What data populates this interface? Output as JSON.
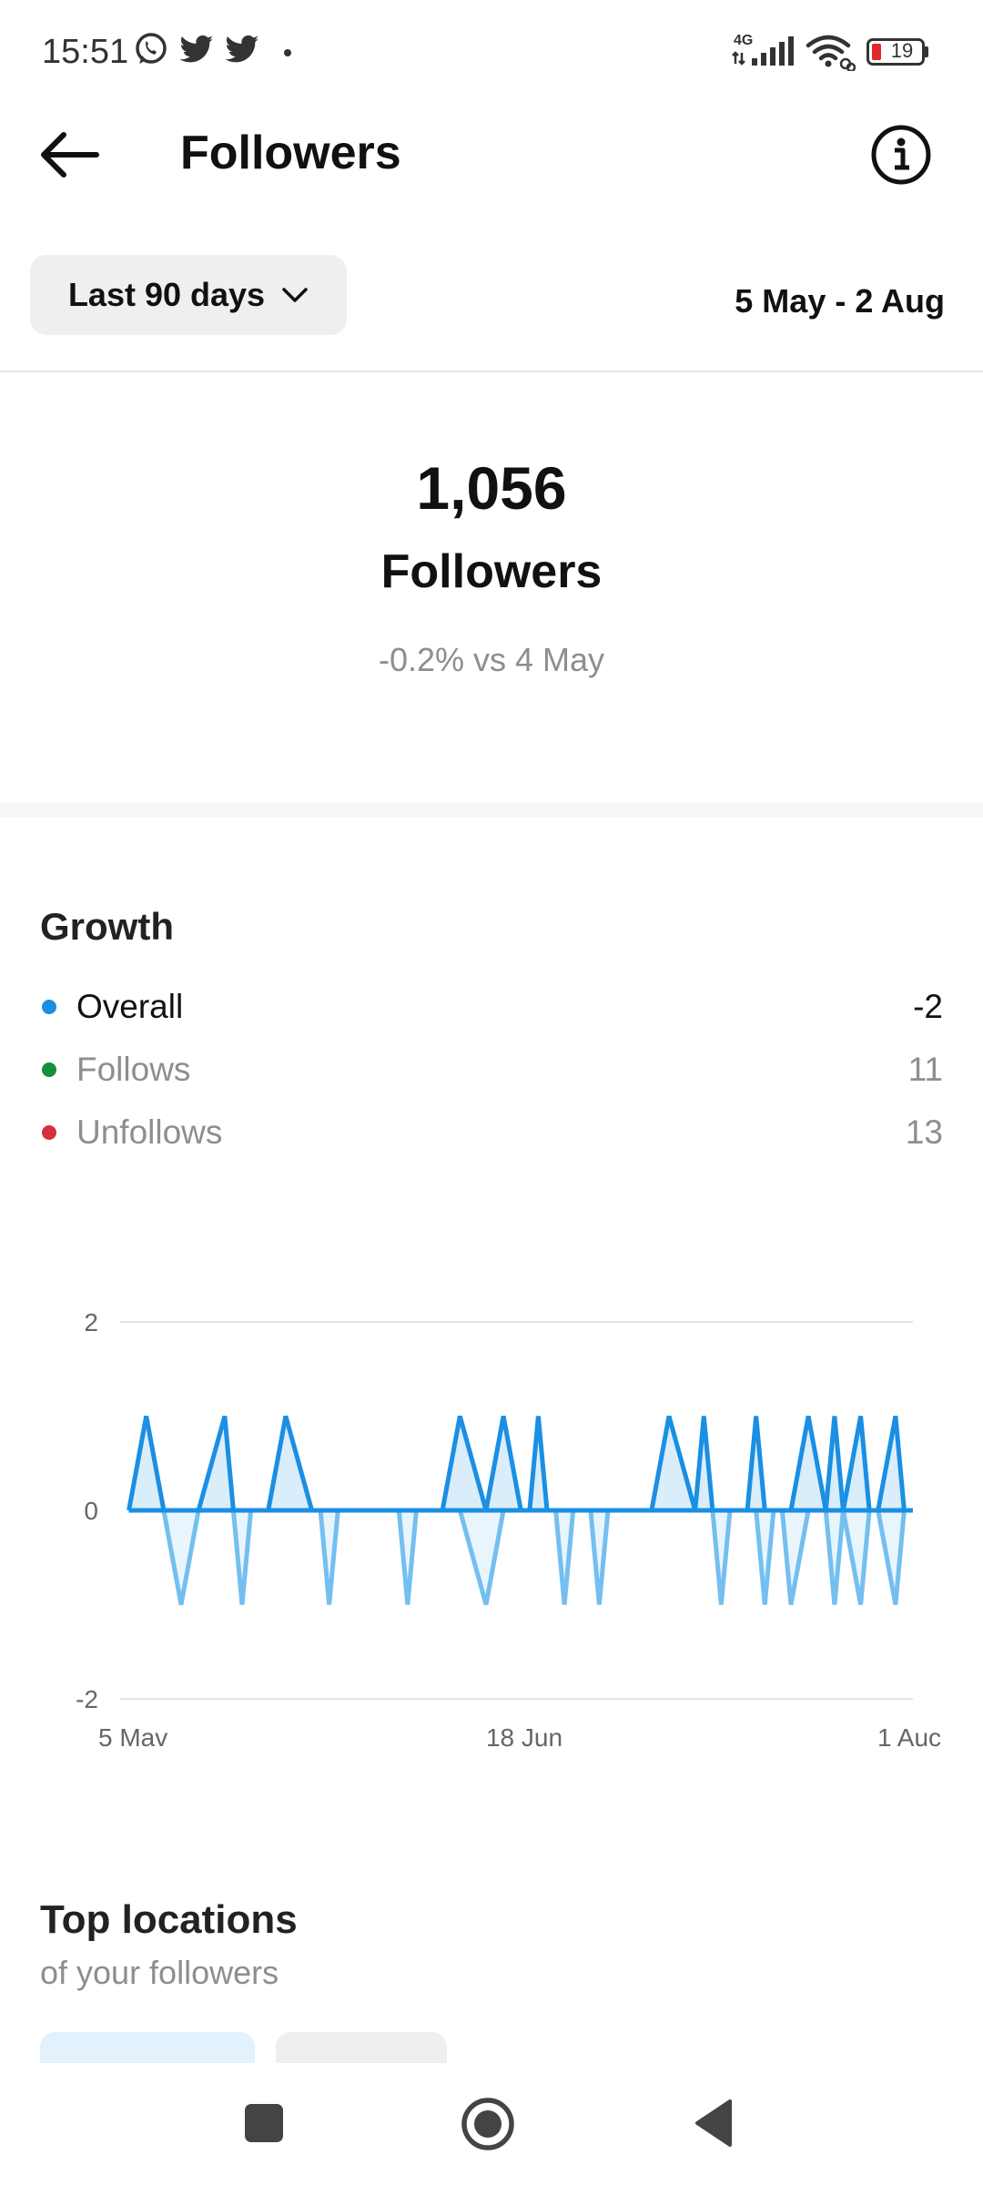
{
  "status_bar": {
    "time": "15:51",
    "network": "4G",
    "battery": "19",
    "icons": [
      "whatsapp-icon",
      "twitter-icon",
      "twitter-icon",
      "dot-icon",
      "signal-icon",
      "wifi-icon",
      "battery-icon"
    ]
  },
  "header": {
    "title": "Followers",
    "back_icon": "arrow-left-icon",
    "info_icon": "info-icon"
  },
  "filter": {
    "range_label": "Last 90 days",
    "dropdown_icon": "chevron-down-icon",
    "date_range": "5 May - 2 Aug"
  },
  "summary": {
    "count": "1,056",
    "label": "Followers",
    "change": "-0.2% vs 4 May"
  },
  "growth": {
    "title": "Growth",
    "legend": [
      {
        "label": "Overall",
        "value": "-2",
        "color": "#1a8fe3",
        "active": true
      },
      {
        "label": "Follows",
        "value": "11",
        "color": "#148f3a",
        "active": false
      },
      {
        "label": "Unfollows",
        "value": "13",
        "color": "#d6303b",
        "active": false
      }
    ]
  },
  "chart_data": {
    "type": "line",
    "x_tick_labels": [
      "5 Mav",
      "18 Jun",
      "1 Auc"
    ],
    "y_tick_labels": [
      "2",
      "0",
      "-2"
    ],
    "ylim": [
      -2,
      2
    ],
    "grid": true,
    "x": [
      1,
      3,
      5,
      7,
      9,
      12,
      13,
      14,
      15,
      17,
      19,
      22,
      23,
      24,
      25,
      27,
      29,
      32,
      33,
      34,
      35,
      37,
      39,
      42,
      44,
      46,
      47,
      48,
      49,
      50,
      51,
      52,
      53,
      54,
      55,
      56,
      57,
      58,
      59,
      61,
      63,
      66,
      67,
      68,
      69,
      70,
      71,
      72,
      73,
      74,
      75,
      76,
      77,
      79,
      81,
      82,
      83,
      85,
      86,
      87,
      89,
      90
    ],
    "series": [
      {
        "color": "#1a8fe3",
        "values": [
          0,
          1,
          0,
          0,
          0,
          1,
          0,
          0,
          0,
          0,
          1,
          0,
          0,
          0,
          0,
          0,
          0,
          0,
          0,
          0,
          0,
          0,
          1,
          0,
          1,
          0,
          0,
          1,
          0,
          0,
          0,
          0,
          0,
          0,
          0,
          0,
          0,
          0,
          0,
          0,
          1,
          0,
          1,
          0,
          0,
          0,
          0,
          0,
          1,
          0,
          0,
          0,
          0,
          1,
          0,
          1,
          0,
          1,
          0,
          0,
          1,
          0
        ]
      },
      {
        "color": "#74bff0",
        "values": [
          0,
          0,
          0,
          -1,
          0,
          0,
          0,
          -1,
          0,
          0,
          0,
          0,
          0,
          -1,
          0,
          0,
          0,
          0,
          -1,
          0,
          0,
          0,
          0,
          -1,
          0,
          0,
          0,
          0,
          0,
          0,
          -1,
          0,
          0,
          0,
          -1,
          0,
          0,
          0,
          0,
          0,
          0,
          0,
          0,
          0,
          -1,
          0,
          0,
          0,
          0,
          -1,
          0,
          0,
          -1,
          0,
          0,
          -1,
          0,
          -1,
          0,
          0,
          -1,
          0
        ]
      }
    ]
  },
  "top_locations": {
    "title": "Top locations",
    "subtitle": "of your followers"
  },
  "navbar": {
    "icons": [
      "square-icon",
      "home-circle-icon",
      "back-triangle-icon"
    ]
  }
}
